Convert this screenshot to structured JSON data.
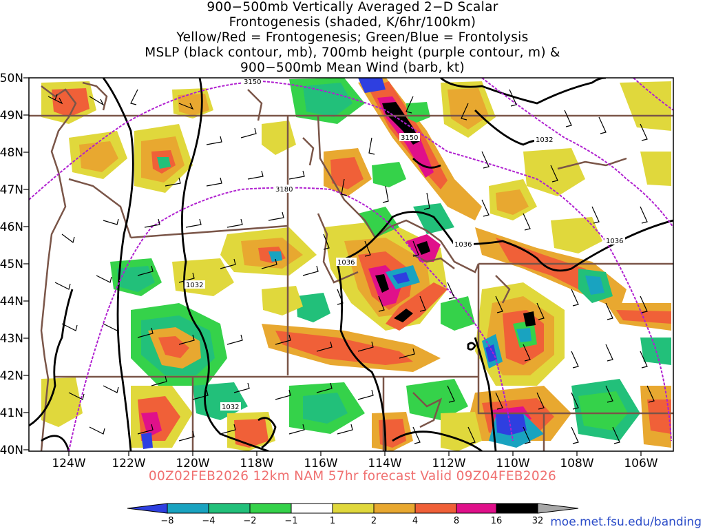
{
  "title_lines": [
    "900−500mb Vertically Averaged 2−D Scalar",
    "Frontogenesis (shaded, K/6hr/100km)",
    "Yellow/Red = Frontogenesis;  Green/Blue = Frontolysis",
    "MSLP (black contour, mb), 700mb height (purple contour, m) &",
    "900−500mb Mean Wind (barb, kt)"
  ],
  "lat_labels": [
    "50N",
    "49N",
    "48N",
    "47N",
    "46N",
    "45N",
    "44N",
    "43N",
    "42N",
    "41N",
    "40N"
  ],
  "lon_labels": [
    "124W",
    "122W",
    "120W",
    "118W",
    "116W",
    "114W",
    "112W",
    "110W",
    "108W",
    "106W"
  ],
  "height_contour_labels": [
    "3150",
    "3150",
    "3180"
  ],
  "pressure_contour_labels": [
    "1032",
    "1036",
    "1036",
    "1032",
    "1032",
    "1036"
  ],
  "colorbar": {
    "tick_labels": [
      "−8",
      "−4",
      "−2",
      "−1",
      "1",
      "2",
      "4",
      "8",
      "16",
      "32"
    ],
    "colors": [
      "#2e3fe0",
      "#19a3c0",
      "#22c07a",
      "#35d24a",
      "#ffffff",
      "#e0d83c",
      "#e8a830",
      "#f06038",
      "#f03878",
      "#e0108a",
      "#000000",
      "#a8a8a8"
    ]
  },
  "footer": "00Z02FEB2026 12km NAM 57hr forecast Valid 09Z04FEB2026",
  "credit": "moe.met.fsu.edu/banding",
  "colors": {
    "state_border": "#7a5548",
    "pressure_contour": "#000000",
    "height_contour": "#b020d0",
    "footer_text": "#f07070",
    "credit_text": "#2b4cc8"
  }
}
